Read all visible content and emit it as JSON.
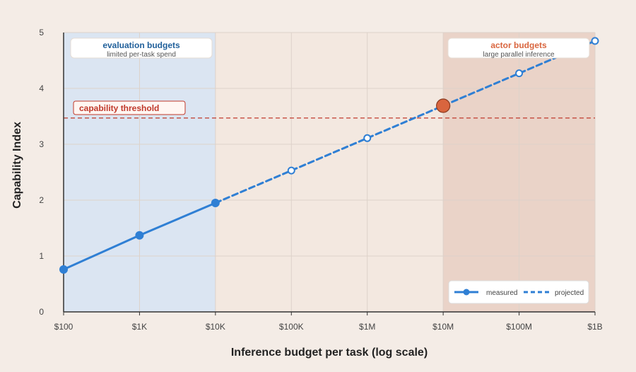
{
  "chart_data": {
    "type": "line",
    "xlabel": "Inference budget per task (log scale)",
    "ylabel": "Capability Index",
    "x_scale": "log",
    "xlim": [
      100,
      1000000000
    ],
    "ylim": [
      0,
      5
    ],
    "x_ticks": [
      100,
      1000,
      10000,
      100000,
      1000000,
      10000000,
      100000000,
      1000000000
    ],
    "x_tick_labels": [
      "$100",
      "$1K",
      "$10K",
      "$100K",
      "$1M",
      "$10M",
      "$100M",
      "$1B"
    ],
    "y_ticks": [
      0,
      1,
      2,
      3,
      4,
      5
    ],
    "y_tick_labels": [
      "0",
      "1",
      "2",
      "3",
      "4",
      "5"
    ],
    "grid": true,
    "series": [
      {
        "name": "measured",
        "style": "solid",
        "color": "#2f7fd4",
        "x": [
          100,
          1000,
          10000
        ],
        "y": [
          0.76,
          1.37,
          1.95
        ]
      },
      {
        "name": "projected",
        "style": "dashed",
        "color": "#2f7fd4",
        "x": [
          10000,
          100000,
          1000000,
          10000000,
          100000000,
          1000000000
        ],
        "y": [
          1.95,
          2.53,
          3.11,
          3.69,
          4.27,
          4.85
        ]
      }
    ],
    "highlight_point": {
      "x": 10000000,
      "y": 3.69,
      "color": "#d9653e"
    },
    "threshold": {
      "label": "capability threshold",
      "y": 3.47,
      "color": "#c0392b"
    },
    "regions": [
      {
        "title": "evaluation budgets",
        "subtitle": "limited per-task spend",
        "x_start": 100,
        "x_end": 10000,
        "fill": "#dbe5f2",
        "title_color": "#1f5f9a"
      },
      {
        "title": "actor budgets",
        "subtitle": "large parallel inference",
        "x_start": 10000000,
        "x_end": 1000000000,
        "fill": "#ead3c8",
        "title_color": "#d9653e"
      }
    ],
    "legend": {
      "position": "bottom-right",
      "entries": [
        "measured",
        "projected"
      ]
    }
  }
}
